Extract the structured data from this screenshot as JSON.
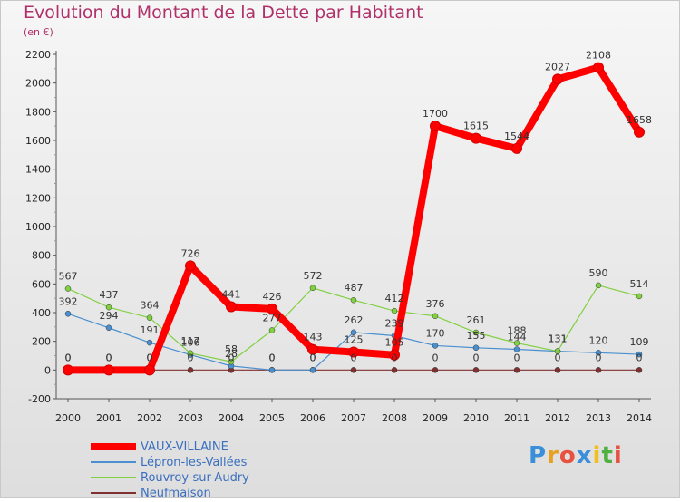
{
  "header": {
    "title": "Evolution du Montant de la Dette par Habitant",
    "unit": "(en €)"
  },
  "logo": {
    "text": "Proxiti",
    "letters": [
      "P",
      "r",
      "o",
      "x",
      "i",
      "t",
      "i"
    ],
    "colors": [
      "#3a8fd8",
      "#e8a020",
      "#e85040",
      "#3a8fd8",
      "#f0c020",
      "#50b040",
      "#e85040"
    ]
  },
  "chart_data": {
    "type": "line",
    "x": [
      "2000",
      "2001",
      "2002",
      "2003",
      "2004",
      "2005",
      "2006",
      "2007",
      "2008",
      "2009",
      "2010",
      "2011",
      "2012",
      "2013",
      "2014"
    ],
    "ylim": [
      -200,
      2200
    ],
    "yticks": [
      -200,
      0,
      200,
      400,
      600,
      800,
      1000,
      1200,
      1400,
      1600,
      1800,
      2000,
      2200
    ],
    "grid": false,
    "legend_placement": "bottom-left",
    "series": [
      {
        "name": "VAUX-VILLAINE",
        "color": "#ff0000",
        "values": [
          0,
          0,
          0,
          726,
          441,
          426,
          143,
          125,
          105,
          1700,
          1615,
          1544,
          2027,
          2108,
          1658
        ],
        "labels": [
          "0",
          "0",
          "0",
          "726",
          "441",
          "426",
          "143",
          "125",
          "105",
          "1700",
          "1615",
          "1544",
          "2027",
          "2108",
          "1658"
        ]
      },
      {
        "name": "Lépron-les-Vallées",
        "color": "#4a90d0",
        "values": [
          392,
          294,
          191,
          106,
          28,
          0,
          0,
          262,
          239,
          170,
          155,
          144,
          131,
          120,
          109
        ],
        "labels": [
          "392",
          "294",
          "191",
          "106",
          "28",
          "0",
          "0",
          "262",
          "239",
          "170",
          "155",
          "144",
          "131",
          "120",
          "109"
        ]
      },
      {
        "name": "Rouvroy-sur-Audry",
        "color": "#80d040",
        "values": [
          567,
          437,
          364,
          117,
          58,
          277,
          572,
          487,
          412,
          376,
          261,
          188,
          131,
          590,
          514
        ],
        "labels": [
          "567",
          "437",
          "364",
          "117",
          "58",
          "277",
          "572",
          "487",
          "412",
          "376",
          "261",
          "188",
          "131",
          "590",
          "514"
        ]
      },
      {
        "name": "Neufmaison",
        "color": "#803030",
        "values": [
          0,
          0,
          0,
          0,
          0,
          0,
          0,
          0,
          0,
          0,
          0,
          0,
          0,
          0,
          0
        ],
        "labels": [
          "0",
          "0",
          "0",
          "0",
          "0",
          "0",
          "0",
          "0",
          "0",
          "0",
          "0",
          "0",
          "0",
          "0",
          "0"
        ]
      }
    ]
  }
}
